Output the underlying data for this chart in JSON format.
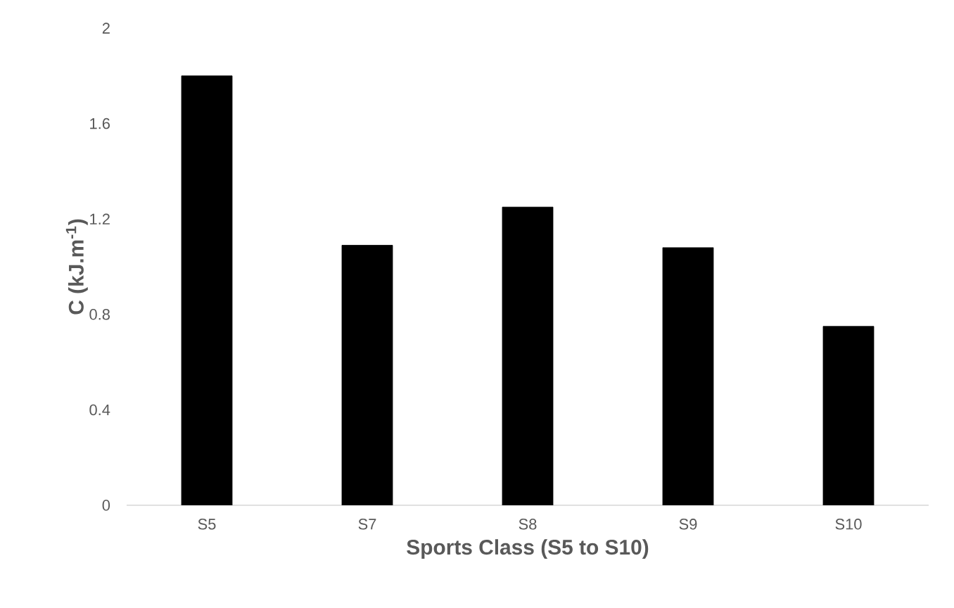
{
  "chart_data": {
    "type": "bar",
    "xlabel": "Sports Class (S5 to S10)",
    "ylabel": "C (kJ.m$^{-1}$)",
    "categories": [
      "S5",
      "S7",
      "S8",
      "S9",
      "S10"
    ],
    "values": [
      1.8,
      1.09,
      1.25,
      1.08,
      0.75
    ],
    "color": "#000000",
    "ylim": [
      0,
      2
    ],
    "yticks": [
      0,
      0.4,
      0.8,
      1.2,
      1.6,
      2
    ]
  }
}
